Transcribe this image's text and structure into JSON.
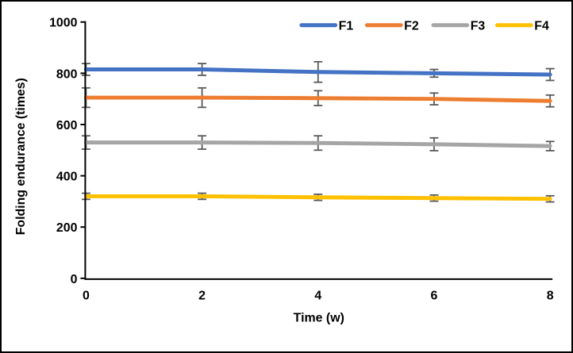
{
  "figure": {
    "background": "#ffffff",
    "border_color": "#000000",
    "axis_color": "#000000",
    "error_bar_color": "#595959"
  },
  "chart_data": {
    "type": "line",
    "title": "",
    "xlabel": "Time (w)",
    "ylabel": "Folding endurance (times)",
    "x": [
      0,
      2,
      4,
      6,
      8
    ],
    "x_tick_labels": [
      "0",
      "2",
      "4",
      "6",
      "8"
    ],
    "y_ticks": [
      0,
      200,
      400,
      600,
      800,
      1000
    ],
    "y_tick_labels": [
      "0",
      "200",
      "400",
      "600",
      "800",
      "1000"
    ],
    "xlim": [
      0,
      8
    ],
    "ylim": [
      0,
      1000
    ],
    "grid": false,
    "legend_position": "top-right",
    "legend_orientation": "horizontal",
    "error_bars": true,
    "series": [
      {
        "name": "F1",
        "color": "#4472C4",
        "values": [
          815,
          815,
          805,
          800,
          795
        ],
        "errors": [
          23,
          23,
          40,
          15,
          23
        ]
      },
      {
        "name": "F2",
        "color": "#ED7D31",
        "values": [
          705,
          705,
          703,
          700,
          692
        ],
        "errors": [
          38,
          38,
          29,
          23,
          23
        ]
      },
      {
        "name": "F3",
        "color": "#A5A5A5",
        "values": [
          530,
          530,
          528,
          523,
          516
        ],
        "errors": [
          26,
          26,
          28,
          25,
          18
        ]
      },
      {
        "name": "F4",
        "color": "#FFC000",
        "values": [
          320,
          320,
          316,
          313,
          310
        ],
        "errors": [
          12,
          12,
          12,
          12,
          12
        ]
      }
    ]
  }
}
